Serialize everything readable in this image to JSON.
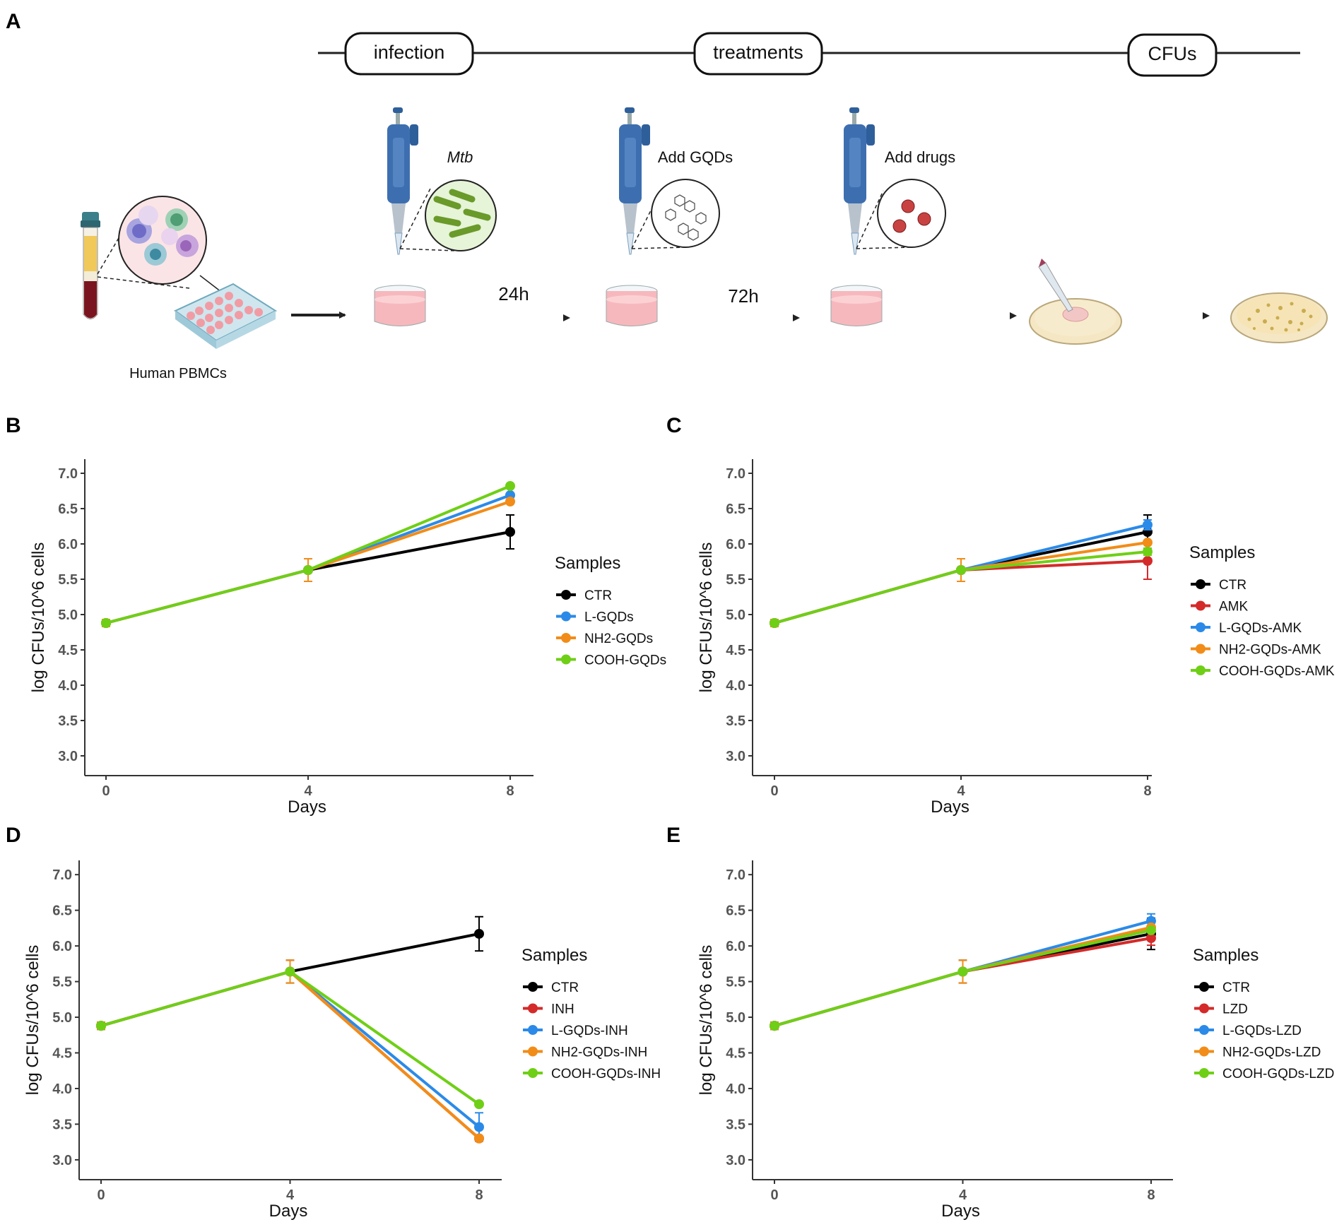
{
  "panelA": {
    "label": "A",
    "timeline": {
      "infection": "infection",
      "treatments": "treatments",
      "cfus": "CFUs"
    },
    "steps": {
      "mtb": "Mtb",
      "add_gqds": "Add GQDs",
      "add_drugs": "Add drugs"
    },
    "durations": {
      "d24": "24h",
      "d72": "72h"
    },
    "pbmc_label": "Human PBMCs"
  },
  "colors": {
    "CTR": "#000000",
    "drug": "#d42a2a",
    "L": "#2b8ae8",
    "NH2": "#f28c18",
    "COOH": "#6fcf16",
    "axis": "#333333",
    "tick": "#555555"
  },
  "chart_data": [
    {
      "id": "B",
      "type": "line",
      "panel_label": "B",
      "xlabel": "Days",
      "ylabel": "log CFUs/10^6 cells",
      "x": [
        0,
        4,
        8
      ],
      "xticks": [
        "0",
        "4",
        "8"
      ],
      "ylim": [
        2.9,
        7.2
      ],
      "yticks": [
        "3.0",
        "3.5",
        "4.0",
        "4.5",
        "5.0",
        "5.5",
        "6.0",
        "6.5",
        "7.0"
      ],
      "grid": false,
      "legend_title": "Samples",
      "legend_position": "right",
      "series": [
        {
          "name": "CTR",
          "color": "#000000",
          "values": [
            4.88,
            5.63,
            6.17
          ],
          "err": [
            0.05,
            0.16,
            0.24
          ]
        },
        {
          "name": "L-GQDs",
          "color": "#2b8ae8",
          "values": [
            4.88,
            5.63,
            6.69
          ],
          "err": [
            0,
            0,
            0
          ]
        },
        {
          "name": "NH2-GQDs",
          "color": "#f28c18",
          "values": [
            4.88,
            5.63,
            6.6
          ],
          "err": [
            0.05,
            0.16,
            0
          ]
        },
        {
          "name": "COOH-GQDs",
          "color": "#6fcf16",
          "values": [
            4.88,
            5.63,
            6.82
          ],
          "err": [
            0,
            0,
            0
          ]
        }
      ]
    },
    {
      "id": "C",
      "type": "line",
      "panel_label": "C",
      "xlabel": "Days",
      "ylabel": "log CFUs/10^6 cells",
      "x": [
        0,
        4,
        8
      ],
      "xticks": [
        "0",
        "4",
        "8"
      ],
      "ylim": [
        2.9,
        7.2
      ],
      "yticks": [
        "3.0",
        "3.5",
        "4.0",
        "4.5",
        "5.0",
        "5.5",
        "6.0",
        "6.5",
        "7.0"
      ],
      "grid": false,
      "legend_title": "Samples",
      "legend_position": "right",
      "series": [
        {
          "name": "CTR",
          "color": "#000000",
          "values": [
            4.88,
            5.63,
            6.17
          ],
          "err": [
            0.05,
            0.16,
            0.24
          ]
        },
        {
          "name": "AMK",
          "color": "#d42a2a",
          "values": [
            4.88,
            5.63,
            5.76
          ],
          "err": [
            0,
            0,
            0.26
          ]
        },
        {
          "name": "L-GQDs-AMK",
          "color": "#2b8ae8",
          "values": [
            4.88,
            5.63,
            6.27
          ],
          "err": [
            0,
            0,
            0.07
          ]
        },
        {
          "name": "NH2-GQDs-AMK",
          "color": "#f28c18",
          "values": [
            4.88,
            5.63,
            6.02
          ],
          "err": [
            0.05,
            0.16,
            0
          ]
        },
        {
          "name": "COOH-GQDs-AMK",
          "color": "#6fcf16",
          "values": [
            4.88,
            5.63,
            5.89
          ],
          "err": [
            0,
            0,
            0.05
          ]
        }
      ]
    },
    {
      "id": "D",
      "type": "line",
      "panel_label": "D",
      "xlabel": "Days",
      "ylabel": "log CFUs/10^6 cells",
      "x": [
        0,
        4,
        8
      ],
      "xticks": [
        "0",
        "4",
        "8"
      ],
      "ylim": [
        2.9,
        7.2
      ],
      "yticks": [
        "3.0",
        "3.5",
        "4.0",
        "4.5",
        "5.0",
        "5.5",
        "6.0",
        "6.5",
        "7.0"
      ],
      "grid": false,
      "legend_title": "Samples",
      "legend_position": "right",
      "series": [
        {
          "name": "CTR",
          "color": "#000000",
          "values": [
            4.88,
            5.64,
            6.17
          ],
          "err": [
            0.05,
            0.16,
            0.24
          ]
        },
        {
          "name": "INH",
          "color": "#d42a2a",
          "values": [
            4.88,
            5.64,
            3.3
          ],
          "err": [
            0,
            0,
            0
          ]
        },
        {
          "name": "L-GQDs-INH",
          "color": "#2b8ae8",
          "values": [
            4.88,
            5.64,
            3.46
          ],
          "err": [
            0,
            0,
            0.2
          ]
        },
        {
          "name": "NH2-GQDs-INH",
          "color": "#f28c18",
          "values": [
            4.88,
            5.64,
            3.3
          ],
          "err": [
            0.05,
            0.16,
            0
          ]
        },
        {
          "name": "COOH-GQDs-INH",
          "color": "#6fcf16",
          "values": [
            4.88,
            5.64,
            3.78
          ],
          "err": [
            0,
            0,
            0
          ]
        }
      ]
    },
    {
      "id": "E",
      "type": "line",
      "panel_label": "E",
      "xlabel": "Days",
      "ylabel": "log CFUs/10^6 cells",
      "x": [
        0,
        4,
        8
      ],
      "xticks": [
        "0",
        "4",
        "8"
      ],
      "ylim": [
        2.9,
        7.2
      ],
      "yticks": [
        "3.0",
        "3.5",
        "4.0",
        "4.5",
        "5.0",
        "5.5",
        "6.0",
        "6.5",
        "7.0"
      ],
      "grid": false,
      "legend_title": "Samples",
      "legend_position": "right",
      "series": [
        {
          "name": "CTR",
          "color": "#000000",
          "values": [
            4.88,
            5.64,
            6.17
          ],
          "err": [
            0.05,
            0.16,
            0.22
          ]
        },
        {
          "name": "LZD",
          "color": "#d42a2a",
          "values": [
            4.88,
            5.64,
            6.11
          ],
          "err": [
            0,
            0,
            0.1
          ]
        },
        {
          "name": "L-GQDs-LZD",
          "color": "#2b8ae8",
          "values": [
            4.88,
            5.64,
            6.35
          ],
          "err": [
            0,
            0,
            0.1
          ]
        },
        {
          "name": "NH2-GQDs-LZD",
          "color": "#f28c18",
          "values": [
            4.88,
            5.64,
            6.26
          ],
          "err": [
            0.05,
            0.16,
            0
          ]
        },
        {
          "name": "COOH-GQDs-LZD",
          "color": "#6fcf16",
          "values": [
            4.88,
            5.64,
            6.22
          ],
          "err": [
            0,
            0,
            0
          ]
        }
      ]
    }
  ]
}
